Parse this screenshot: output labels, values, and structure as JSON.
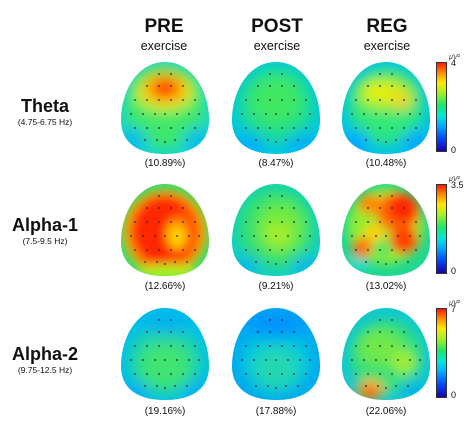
{
  "columns": [
    {
      "title": "PRE",
      "subtitle": "exercise"
    },
    {
      "title": "POST",
      "subtitle": "exercise"
    },
    {
      "title": "REG",
      "subtitle": "exercise"
    }
  ],
  "rows": [
    {
      "name": "Theta",
      "freq": "(4.75-6.75 Hz)",
      "percents": [
        "(10.89%)",
        "(8.47%)",
        "(10.48%)"
      ],
      "scale": {
        "max": "4",
        "min": "0",
        "unit": "μV²"
      }
    },
    {
      "name": "Alpha-1",
      "freq": "(7.5-9.5 Hz)",
      "percents": [
        "(12.66%)",
        "(9.21%)",
        "(13.02%)"
      ],
      "scale": {
        "max": "3.5",
        "min": "0",
        "unit": "μV²"
      }
    },
    {
      "name": "Alpha-2",
      "freq": "(9.75-12.5 Hz)",
      "percents": [
        "(19.16%)",
        "(17.88%)",
        "(22.06%)"
      ],
      "scale": {
        "max": "7",
        "min": "0",
        "unit": "μV²"
      }
    }
  ],
  "colormap": [
    "#1a00a8",
    "#0047ff",
    "#00b4ff",
    "#00e8d8",
    "#19e86a",
    "#a5f022",
    "#ffe800",
    "#ff8a00",
    "#ff1a00"
  ]
}
